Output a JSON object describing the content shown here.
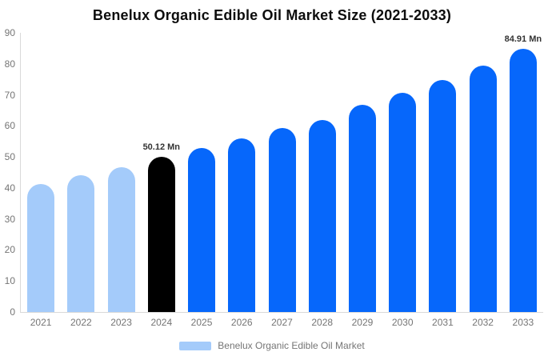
{
  "colors": {
    "bar_light_blue": "#a4cbfa",
    "bar_black": "#000000",
    "bar_bright_blue": "#0667fb",
    "axis_line": "#d9d9d9",
    "tick_label": "#757575",
    "title_text": "#0d0d0d",
    "annotation_text": "#333333",
    "background": "#ffffff"
  },
  "chart_data": {
    "type": "bar",
    "title": "Benelux Organic Edible Oil Market Size (2021-2033)",
    "categories": [
      "2021",
      "2022",
      "2023",
      "2024",
      "2025",
      "2026",
      "2027",
      "2028",
      "2029",
      "2030",
      "2031",
      "2032",
      "2033"
    ],
    "values": [
      41.2,
      44.1,
      46.8,
      50.12,
      52.8,
      55.9,
      59.2,
      61.9,
      66.8,
      70.7,
      74.9,
      79.5,
      84.91
    ],
    "bar_colors": [
      "#a4cbfa",
      "#a4cbfa",
      "#a4cbfa",
      "#000000",
      "#0667fb",
      "#0667fb",
      "#0667fb",
      "#0667fb",
      "#0667fb",
      "#0667fb",
      "#0667fb",
      "#0667fb",
      "#0667fb"
    ],
    "annotations": [
      {
        "category": "2024",
        "text": "50.12 Mn"
      },
      {
        "category": "2033",
        "text": "84.91 Mn"
      }
    ],
    "xlabel": "",
    "ylabel": "",
    "ylim": [
      0,
      90
    ],
    "yticks": [
      0,
      10,
      20,
      30,
      40,
      50,
      60,
      70,
      80,
      90
    ],
    "grid": false,
    "legend": {
      "position": "bottom",
      "label": "Benelux Organic Edible Oil Market",
      "swatch_color": "#a4cbfa"
    }
  }
}
